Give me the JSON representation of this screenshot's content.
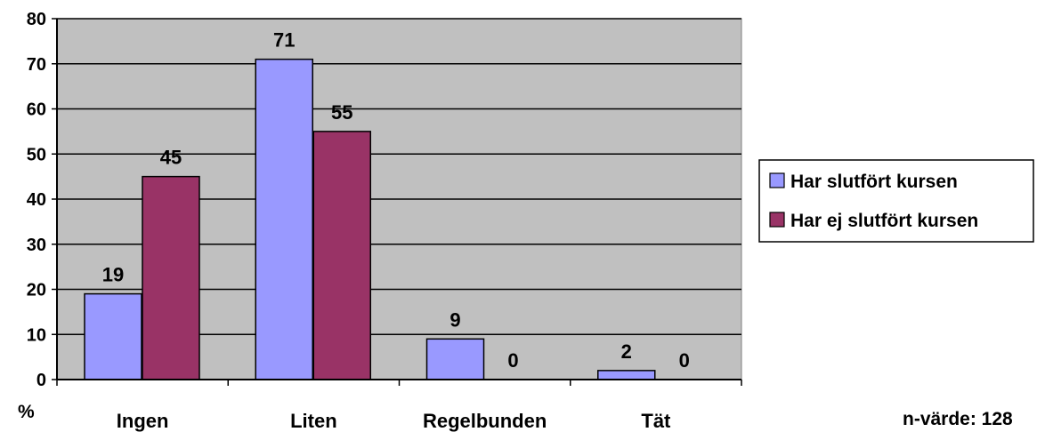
{
  "chart_data": {
    "type": "bar",
    "categories": [
      "Ingen",
      "Liten",
      "Regelbunden",
      "Tät"
    ],
    "series": [
      {
        "name": "Har slutfört kursen",
        "values": [
          19,
          71,
          9,
          2
        ],
        "color": "#9999ff"
      },
      {
        "name": "Har ej slutfört kursen",
        "values": [
          45,
          55,
          0,
          0
        ],
        "color": "#993366"
      }
    ],
    "ylim": [
      0,
      80
    ],
    "yticks": [
      "0",
      "10",
      "20",
      "30",
      "40",
      "50",
      "60",
      "70",
      "80"
    ],
    "ylabel": "%",
    "grid": true,
    "legend_position": "right",
    "plot_background": "#c0c0c0",
    "annotation": "n-värde: 128"
  }
}
